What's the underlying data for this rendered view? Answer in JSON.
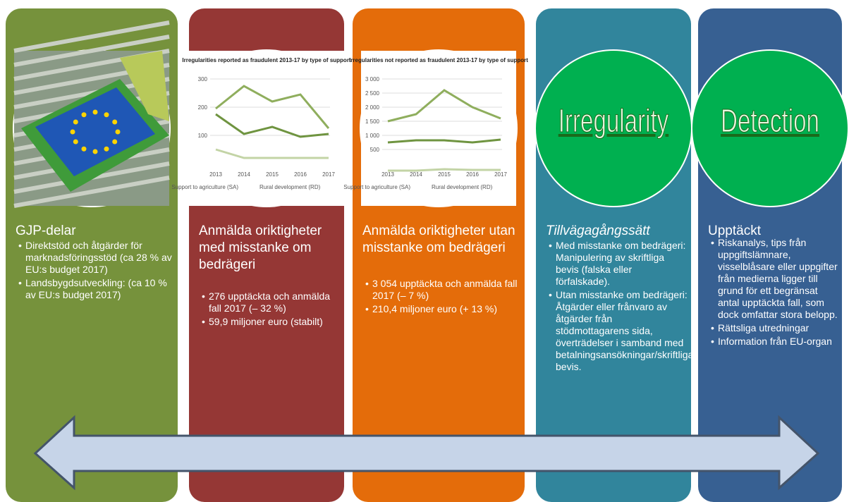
{
  "columns": [
    {
      "heading": "GJP-delar",
      "italic": false,
      "bullets": [
        "Direktstöd och åtgärder för marknadsföringsstöd (ca 28 % av EU:s budget 2017)",
        "Landsbygdsutveckling: (ca 10 % av EU:s budget 2017)"
      ]
    },
    {
      "heading": "Anmälda oriktigheter med misstanke om bedrägeri",
      "italic": false,
      "bullets": [
        "276 upptäckta och anmälda fall 2017 (– 32 %)",
        "59,9 miljoner euro (stabilt)"
      ],
      "chart": {
        "title": "Irregularities reported as fraudulent 2013-17 by type of support",
        "yticks": [
          "300",
          "200",
          "100"
        ],
        "years": [
          "2013",
          "2014",
          "2015",
          "2016",
          "2017"
        ],
        "legend": [
          "Support to agriculture (SA)",
          "Rural development (RD)"
        ]
      }
    },
    {
      "heading": "Anmälda oriktigheter utan misstanke om bedrägeri",
      "italic": false,
      "bullets": [
        "3 054 upptäckta och anmälda fall 2017 (– 7 %)",
        "210,4 miljoner euro (+ 13 %)"
      ],
      "chart": {
        "title": "Irregularities not reported as fraudulent 2013-17 by type of support",
        "yticks": [
          "3 000",
          "2 500",
          "2 000",
          "1 500",
          "1 000",
          "500"
        ],
        "years": [
          "2013",
          "2014",
          "2015",
          "2016",
          "2017"
        ],
        "legend": [
          "Support to agriculture (SA)",
          "Rural development (RD)"
        ]
      }
    },
    {
      "heading": "Tillvägagångssätt",
      "italic": true,
      "circle_word": "Irregularity",
      "bullets": [
        "Med misstanke om bedrägeri: Manipulering av skriftliga bevis (falska eller förfalskade).",
        "Utan misstanke om bedrägeri: Åtgärder eller frånvaro av åtgärder från stödmottagarens sida, överträdelser i samband med betalningsansökningar/skriftliga bevis."
      ]
    },
    {
      "heading": "Upptäckt",
      "italic": false,
      "circle_word": "Detection",
      "bullets": [
        "Riskanalys, tips från uppgiftslämnare, visselblåsare eller uppgifter från medierna ligger till grund för ett begränsat antal upptäckta fall, som dock omfattar stora belopp.",
        "Rättsliga utredningar",
        "Information från EU-organ"
      ]
    }
  ]
}
